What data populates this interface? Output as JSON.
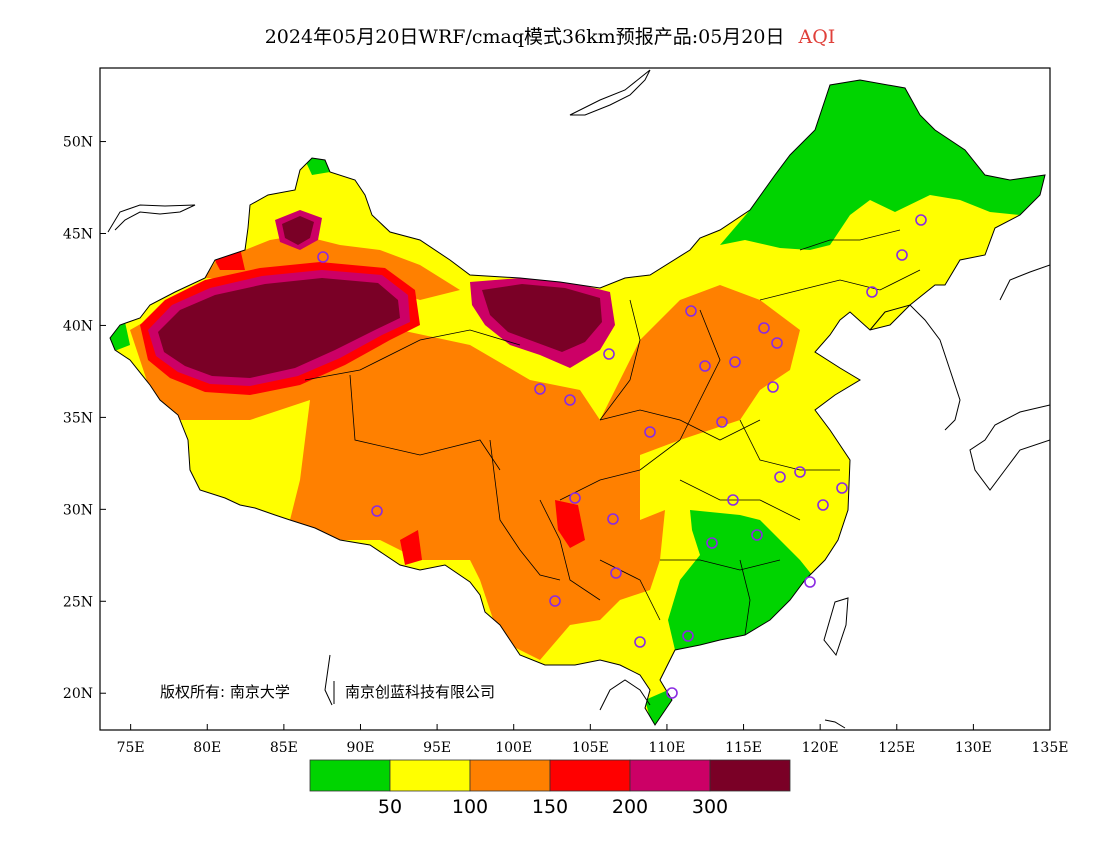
{
  "title": {
    "main": "2024年05月20日WRF/cmaq模式36km预报产品:05月20日",
    "variable": "AQI"
  },
  "map": {
    "lon_range": [
      73,
      135
    ],
    "lat_range": [
      18,
      54
    ],
    "lon_ticks": [
      "75E",
      "80E",
      "85E",
      "90E",
      "95E",
      "100E",
      "105E",
      "110E",
      "115E",
      "120E",
      "125E",
      "130E",
      "135E"
    ],
    "lon_tick_values": [
      75,
      80,
      85,
      90,
      95,
      100,
      105,
      110,
      115,
      120,
      125,
      130,
      135
    ],
    "lat_ticks": [
      "20N",
      "25N",
      "30N",
      "35N",
      "40N",
      "45N",
      "50N"
    ],
    "lat_tick_values": [
      20,
      25,
      30,
      35,
      40,
      45,
      50
    ]
  },
  "colors": {
    "good": "#00d400",
    "moderate": "#ffff00",
    "sensitive": "#ff8000",
    "unhealthy": "#ff0000",
    "very_unhealthy": "#cc0066",
    "hazardous": "#7a0026",
    "station": "#8a2be2"
  },
  "legend": {
    "colors": [
      "#00d400",
      "#ffff00",
      "#ff8000",
      "#ff0000",
      "#cc0066",
      "#7a0026"
    ],
    "labels": [
      "50",
      "100",
      "150",
      "200",
      "300"
    ]
  },
  "copyright": {
    "prefix": "版权所有: 南京大学",
    "second": "南京创蓝科技有限公司"
  }
}
